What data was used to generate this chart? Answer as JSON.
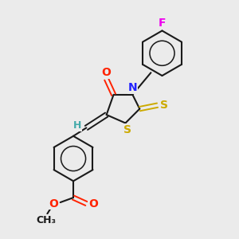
{
  "bg_color": "#ebebeb",
  "bond_color": "#1a1a1a",
  "atom_colors": {
    "F": "#ee00ee",
    "O": "#ff2200",
    "N": "#2222ff",
    "S": "#ccaa00",
    "H": "#44aaaa",
    "C": "#1a1a1a"
  },
  "figsize": [
    3.0,
    3.0
  ],
  "dpi": 100
}
